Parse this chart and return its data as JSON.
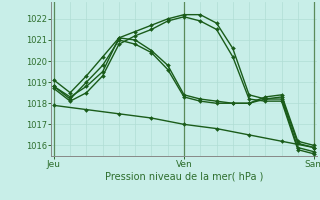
{
  "xlabel": "Pression niveau de la mer( hPa )",
  "bg_color": "#c8eee8",
  "grid_color_v": "#b0ddd5",
  "grid_color_h": "#b0ddd5",
  "axis_color": "#2d6e2d",
  "line_color": "#1a5c1a",
  "ylim": [
    1015.5,
    1022.8
  ],
  "xlim": [
    -0.5,
    48.5
  ],
  "xticks": [
    0,
    24,
    48
  ],
  "xtick_labels": [
    "Jeu",
    "Ven",
    "Sam"
  ],
  "yticks": [
    1016,
    1017,
    1018,
    1019,
    1020,
    1021,
    1022
  ],
  "ytick_fontsize": 6,
  "xtick_fontsize": 6.5,
  "xlabel_fontsize": 7,
  "series": [
    {
      "x": [
        0,
        3,
        6,
        9,
        12,
        15,
        18,
        21,
        24,
        27,
        30,
        33,
        36,
        39,
        42,
        45,
        48
      ],
      "y": [
        1018.8,
        1018.3,
        1018.8,
        1019.5,
        1021.1,
        1021.4,
        1021.7,
        1022.0,
        1022.2,
        1022.2,
        1021.8,
        1020.6,
        1018.4,
        1018.2,
        1018.2,
        1015.9,
        1015.7
      ]
    },
    {
      "x": [
        0,
        3,
        6,
        9,
        12,
        15,
        18,
        21,
        24,
        27,
        30,
        33,
        36,
        39,
        42,
        45,
        48
      ],
      "y": [
        1018.7,
        1018.1,
        1018.5,
        1019.3,
        1020.8,
        1021.2,
        1021.5,
        1021.9,
        1022.1,
        1021.9,
        1021.5,
        1020.2,
        1018.2,
        1018.1,
        1018.1,
        1015.8,
        1015.6
      ]
    },
    {
      "x": [
        0,
        3,
        6,
        9,
        12,
        15,
        18,
        21,
        24,
        27,
        30,
        33,
        36,
        39,
        42,
        45,
        48
      ],
      "y": [
        1019.1,
        1018.5,
        1019.3,
        1020.2,
        1021.1,
        1021.0,
        1020.5,
        1019.8,
        1018.4,
        1018.2,
        1018.1,
        1018.0,
        1018.0,
        1018.3,
        1018.4,
        1016.2,
        1016.0
      ]
    },
    {
      "x": [
        0,
        3,
        6,
        9,
        12,
        15,
        18,
        21,
        24,
        27,
        30,
        33,
        36,
        39,
        42,
        45,
        48
      ],
      "y": [
        1018.8,
        1018.2,
        1019.0,
        1019.8,
        1021.0,
        1020.8,
        1020.4,
        1019.6,
        1018.3,
        1018.1,
        1018.0,
        1018.0,
        1018.0,
        1018.2,
        1018.3,
        1016.1,
        1015.9
      ]
    },
    {
      "x": [
        0,
        6,
        12,
        18,
        24,
        30,
        36,
        42,
        48
      ],
      "y": [
        1017.9,
        1017.7,
        1017.5,
        1017.3,
        1017.0,
        1016.8,
        1016.5,
        1016.2,
        1015.9
      ]
    }
  ]
}
